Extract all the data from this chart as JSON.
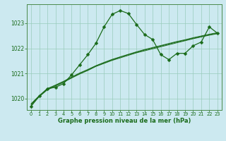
{
  "title": "Graphe pression niveau de la mer (hPa)",
  "bg_color": "#cce9f0",
  "grid_color": "#99ccbb",
  "line_color": "#1a6b1a",
  "border_color": "#4a8a4a",
  "xlim": [
    -0.5,
    23.5
  ],
  "ylim": [
    1019.55,
    1023.75
  ],
  "yticks": [
    1020,
    1021,
    1022,
    1023
  ],
  "xticks": [
    0,
    1,
    2,
    3,
    4,
    5,
    6,
    7,
    8,
    9,
    10,
    11,
    12,
    13,
    14,
    15,
    16,
    17,
    18,
    19,
    20,
    21,
    22,
    23
  ],
  "series_main": [
    1019.7,
    1020.1,
    1020.4,
    1020.45,
    1020.6,
    1020.95,
    1021.35,
    1021.75,
    1022.2,
    1022.85,
    1023.35,
    1023.5,
    1023.38,
    1022.95,
    1022.55,
    1022.35,
    1021.75,
    1021.55,
    1021.8,
    1021.8,
    1022.1,
    1022.25,
    1022.85,
    1022.6
  ],
  "series_trend1": [
    1019.75,
    1020.08,
    1020.35,
    1020.5,
    1020.65,
    1020.82,
    1020.98,
    1021.12,
    1021.28,
    1021.4,
    1021.52,
    1021.62,
    1021.72,
    1021.82,
    1021.9,
    1021.98,
    1022.06,
    1022.14,
    1022.22,
    1022.3,
    1022.38,
    1022.45,
    1022.52,
    1022.58
  ],
  "series_trend2": [
    1019.78,
    1020.1,
    1020.38,
    1020.52,
    1020.67,
    1020.84,
    1021.0,
    1021.14,
    1021.3,
    1021.42,
    1021.54,
    1021.65,
    1021.75,
    1021.84,
    1021.93,
    1022.01,
    1022.09,
    1022.17,
    1022.25,
    1022.32,
    1022.4,
    1022.47,
    1022.54,
    1022.6
  ],
  "series_trend3": [
    1019.8,
    1020.12,
    1020.4,
    1020.54,
    1020.69,
    1020.86,
    1021.02,
    1021.16,
    1021.31,
    1021.44,
    1021.56,
    1021.66,
    1021.76,
    1021.86,
    1021.95,
    1022.03,
    1022.11,
    1022.19,
    1022.27,
    1022.34,
    1022.42,
    1022.49,
    1022.56,
    1022.62
  ],
  "marker_style": "D",
  "marker_size": 2.5,
  "linewidth_main": 0.9,
  "linewidth_trend": 0.7,
  "xlabel_fontsize": 6.0,
  "tick_fontsize": 4.8,
  "ytick_fontsize": 5.5
}
